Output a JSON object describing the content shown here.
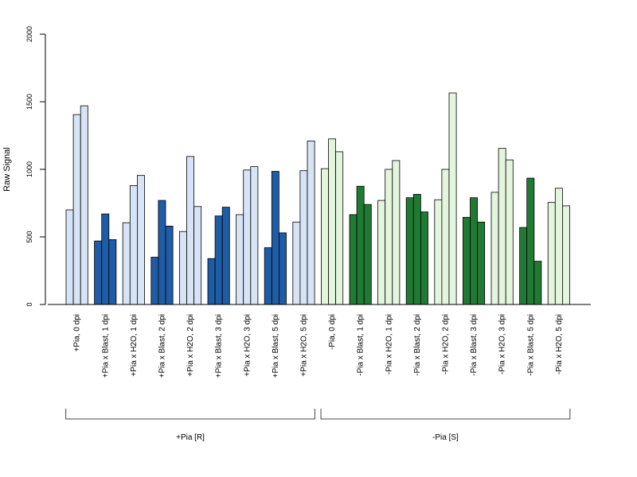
{
  "chart_data": {
    "type": "bar",
    "ylabel": "Raw Signal",
    "ylim": [
      0,
      2000
    ],
    "yticks": [
      0,
      500,
      1000,
      1500,
      2000
    ],
    "grid": false,
    "colors": {
      "light_blue": "#d6e4f5",
      "dark_blue": "#1f5ca6",
      "light_green": "#e3f5dc",
      "dark_green": "#217a33"
    },
    "categories": [
      {
        "label": "+Pia, 0 dpi",
        "color": "light_blue",
        "values": [
          700,
          1405,
          1470
        ]
      },
      {
        "label": "+Pia x Blast, 1 dpi",
        "color": "dark_blue",
        "values": [
          470,
          670,
          480
        ]
      },
      {
        "label": "+Pia x H2O, 1 dpi",
        "color": "light_blue",
        "values": [
          605,
          880,
          955
        ]
      },
      {
        "label": "+Pia x Blast, 2 dpi",
        "color": "dark_blue",
        "values": [
          350,
          770,
          580
        ]
      },
      {
        "label": "+Pia x H2O, 2 dpi",
        "color": "light_blue",
        "values": [
          540,
          1095,
          725
        ]
      },
      {
        "label": "+Pia x Blast, 3 dpi",
        "color": "dark_blue",
        "values": [
          340,
          655,
          720
        ]
      },
      {
        "label": "+Pia x H2O, 3 dpi",
        "color": "light_blue",
        "values": [
          665,
          995,
          1020
        ]
      },
      {
        "label": "+Pia x Blast, 5 dpi",
        "color": "dark_blue",
        "values": [
          420,
          985,
          530
        ]
      },
      {
        "label": "+Pia x H2O, 5 dpi",
        "color": "light_blue",
        "values": [
          610,
          990,
          1210
        ]
      },
      {
        "label": "-Pia, 0 dpi",
        "color": "light_green",
        "values": [
          1005,
          1225,
          1130
        ]
      },
      {
        "label": "-Pia x Blast, 1 dpi",
        "color": "dark_green",
        "values": [
          665,
          875,
          740
        ]
      },
      {
        "label": "-Pia x H2O, 1 dpi",
        "color": "light_green",
        "values": [
          770,
          1000,
          1065
        ]
      },
      {
        "label": "-Pia x Blast, 2 dpi",
        "color": "dark_green",
        "values": [
          790,
          815,
          685
        ]
      },
      {
        "label": "-Pia x H2O, 2 dpi",
        "color": "light_green",
        "values": [
          775,
          1000,
          1565
        ]
      },
      {
        "label": "-Pia x Blast, 3 dpi",
        "color": "dark_green",
        "values": [
          645,
          790,
          610
        ]
      },
      {
        "label": "-Pia x H2O, 3 dpi",
        "color": "light_green",
        "values": [
          830,
          1155,
          1070
        ]
      },
      {
        "label": "-Pia x Blast, 5 dpi",
        "color": "dark_green",
        "values": [
          570,
          935,
          320
        ]
      },
      {
        "label": "-Pia x H2O, 5 dpi",
        "color": "light_green",
        "values": [
          755,
          860,
          730
        ]
      }
    ],
    "groups": [
      {
        "label": "+Pia [R]",
        "from_category": 0,
        "to_category": 8
      },
      {
        "label": "-Pia [S]",
        "from_category": 9,
        "to_category": 17
      }
    ]
  }
}
